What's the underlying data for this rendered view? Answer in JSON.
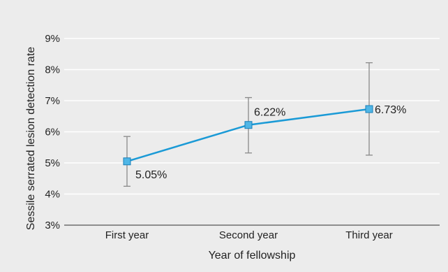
{
  "chart_data": {
    "type": "line",
    "title": "",
    "xlabel": "Year of fellowship",
    "ylabel": "Sessile serrated lesion detection rate",
    "categories": [
      "First year",
      "Second year",
      "Third year"
    ],
    "ylim": [
      3,
      9
    ],
    "yticks": [
      "3%",
      "4%",
      "5%",
      "6%",
      "7%",
      "8%",
      "9%"
    ],
    "grid": true,
    "series": [
      {
        "values": [
          5.05,
          6.22,
          6.73
        ],
        "error_low": [
          4.25,
          5.32,
          5.25
        ],
        "error_high": [
          5.85,
          7.1,
          8.22
        ],
        "labels": [
          "5.05%",
          "6.22%",
          "6.73%"
        ]
      }
    ],
    "colors": {
      "line": "#1a9ad6",
      "marker_fill": "#4fb6e6",
      "marker_stroke": "#1a7fb8",
      "error_bar": "#8a8a8a",
      "grid": "#ffffff",
      "background": "#ececec"
    }
  }
}
